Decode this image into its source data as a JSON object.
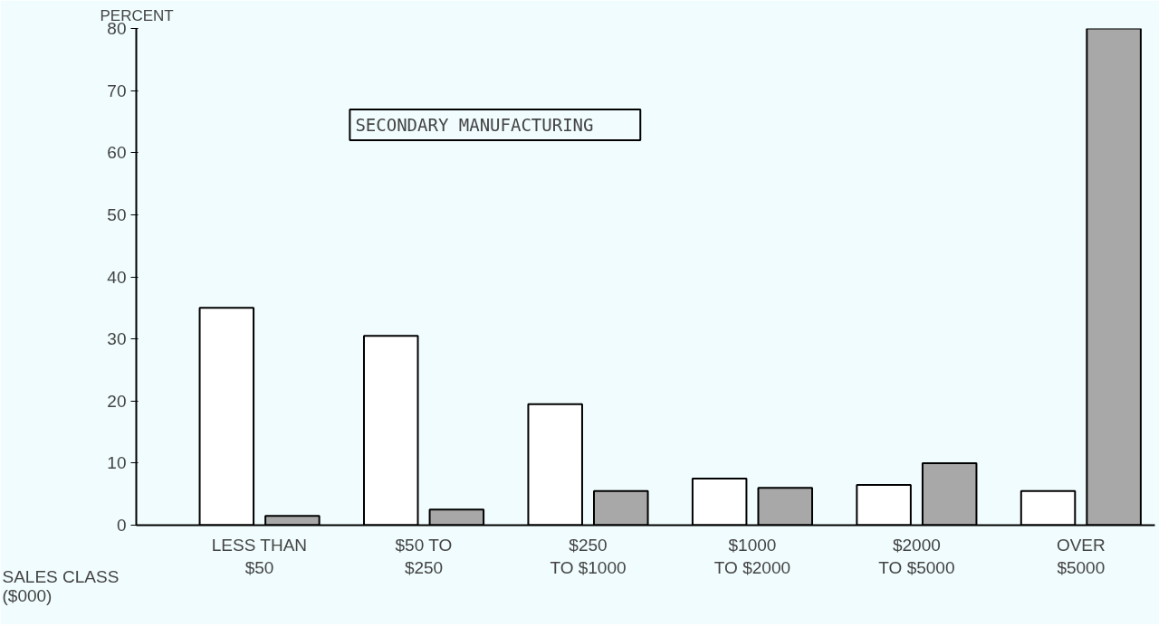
{
  "chart_data": {
    "type": "bar",
    "ylabel": "PERCENT",
    "xlabel": "SALES CLASS\n($000)",
    "categories": [
      "LESS THAN\n$50",
      "$50 TO\n$250",
      "$250\nTO $1000",
      "$1000\nTO $2000",
      "$2000\nTO $5000",
      "OVER\n$5000"
    ],
    "series": [
      {
        "color": "#ffffff",
        "values": [
          35,
          30.5,
          19.5,
          7.5,
          6.5,
          5.5
        ]
      },
      {
        "color": "#a8a8a8",
        "values": [
          1.5,
          2.5,
          5.5,
          6,
          10,
          80
        ]
      }
    ],
    "ylim": [
      0,
      80
    ],
    "yticks": [
      0,
      10,
      20,
      30,
      40,
      50,
      60,
      70,
      80
    ],
    "grid": false,
    "annotations": [
      "SECONDARY MANUFACTURING"
    ]
  }
}
